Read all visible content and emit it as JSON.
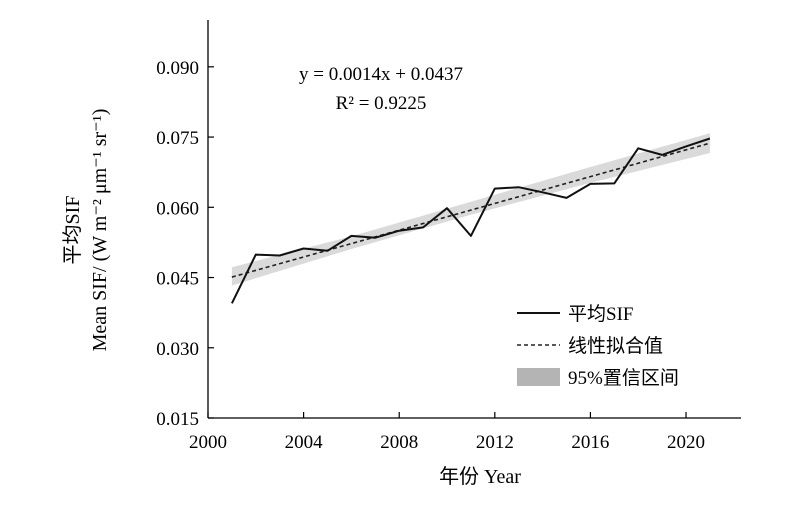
{
  "chart_data": {
    "type": "line",
    "xlabel": "年份  Year",
    "ylabel_line1": "平均SIF",
    "ylabel_line2": "Mean SIF/ (W m⁻² μm⁻¹ sr⁻¹)",
    "xlim": [
      2000,
      2022.3
    ],
    "ylim": [
      0.015,
      0.1
    ],
    "x_ticks": [
      2000,
      2004,
      2008,
      2012,
      2016,
      2020
    ],
    "y_ticks": [
      0.015,
      0.03,
      0.045,
      0.06,
      0.075,
      0.09
    ],
    "y_tick_labels": [
      "0.015",
      "0.030",
      "0.045",
      "0.060",
      "0.075",
      "0.090"
    ],
    "grid": false,
    "legend_position": "lower-right",
    "equation": {
      "line1": "y = 0.0014x + 0.0437",
      "line2": "R² = 0.9225"
    },
    "series": [
      {
        "name": "平均SIF",
        "style": "solid",
        "color": "#111111",
        "x": [
          2001,
          2002,
          2003,
          2004,
          2005,
          2006,
          2007,
          2008,
          2009,
          2010,
          2011,
          2012,
          2013,
          2014,
          2015,
          2016,
          2017,
          2018,
          2019,
          2020,
          2021
        ],
        "values": [
          0.0395,
          0.0499,
          0.0497,
          0.0512,
          0.0507,
          0.0539,
          0.0535,
          0.055,
          0.0557,
          0.0598,
          0.0539,
          0.064,
          0.0643,
          0.0632,
          0.062,
          0.065,
          0.0651,
          0.0726,
          0.0712,
          0.073,
          0.0747
        ]
      },
      {
        "name": "线性拟合值",
        "style": "dashed",
        "color": "#222222",
        "x": [
          2001,
          2021
        ],
        "values": [
          0.0451,
          0.0737
        ]
      }
    ],
    "confidence_band": {
      "name": "95%置信区间",
      "color": "#b4b4b4",
      "x": [
        2001,
        2006,
        2011,
        2016,
        2021
      ],
      "lower": [
        0.0433,
        0.0511,
        0.0584,
        0.0652,
        0.0716
      ],
      "upper": [
        0.0472,
        0.0538,
        0.0612,
        0.0686,
        0.0758
      ]
    }
  }
}
